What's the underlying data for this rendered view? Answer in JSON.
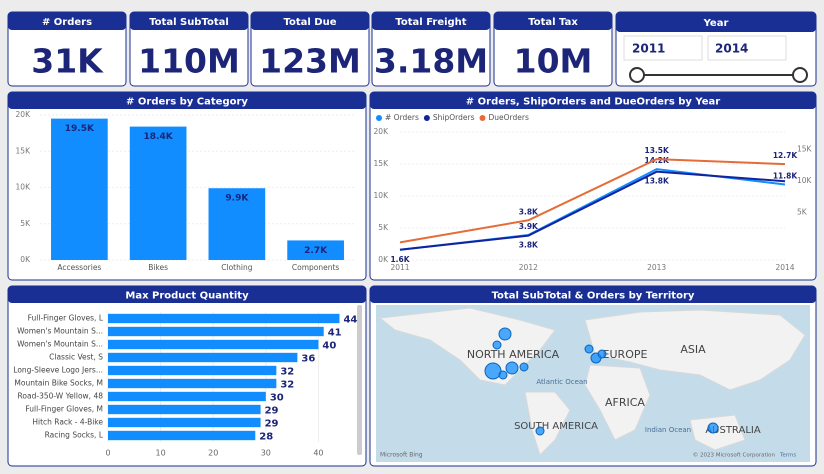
{
  "cards": [
    {
      "label": "# Orders",
      "value": "31K"
    },
    {
      "label": "Total SubTotal",
      "value": "110M"
    },
    {
      "label": "Total Due",
      "value": "123M"
    },
    {
      "label": "Total Freight",
      "value": "3.18M"
    },
    {
      "label": "Total Tax",
      "value": "10M"
    }
  ],
  "slicer": {
    "title": "Year",
    "from": "2011",
    "to": "2014"
  },
  "chart_data": [
    {
      "type": "bar",
      "title": "# Orders by Category",
      "color": "#118dff",
      "categories": [
        "Accessories",
        "Bikes",
        "Clothing",
        "Components"
      ],
      "values": [
        19500,
        18400,
        9900,
        2700
      ],
      "value_labels": [
        "19.5K",
        "18.4K",
        "9.9K",
        "2.7K"
      ],
      "ylim": [
        0,
        20000
      ],
      "yticks": [
        {
          "value": 0,
          "label": "0K"
        },
        {
          "value": 5000,
          "label": "5K"
        },
        {
          "value": 10000,
          "label": "10K"
        },
        {
          "value": 15000,
          "label": "15K"
        },
        {
          "value": 20000,
          "label": "20K"
        }
      ],
      "grid": true
    },
    {
      "type": "line",
      "title": "# Orders, ShipOrders and DueOrders by Year",
      "x": [
        2011,
        2012,
        2013,
        2014
      ],
      "xlim": [
        2011,
        2014
      ],
      "xticks": [
        2011,
        2012,
        2013,
        2014
      ],
      "ylim": [
        0,
        20000
      ],
      "yticks": [
        {
          "value": 0,
          "label": "0K"
        },
        {
          "value": 5000,
          "label": "5K"
        },
        {
          "value": 10000,
          "label": "10K"
        },
        {
          "value": 15000,
          "label": "15K"
        },
        {
          "value": 20000,
          "label": "20K"
        }
      ],
      "y2lim": [
        -2500,
        17800
      ],
      "y2ticks": [
        {
          "value": 5000,
          "label": "5K"
        },
        {
          "value": 10000,
          "label": "10K"
        },
        {
          "value": 15000,
          "label": "15K"
        }
      ],
      "grid": true,
      "legend": "top-left",
      "series": [
        {
          "name": "# Orders",
          "color": "#118dff",
          "values": [
            1600,
            3900,
            14200,
            11800
          ],
          "value_labels": [
            null,
            "3.9K",
            "14.2K",
            "11.8K"
          ]
        },
        {
          "name": "ShipOrders",
          "color": "#12239e",
          "values": [
            1600,
            3800,
            13800,
            12300
          ],
          "value_labels": [
            "1.6K",
            "3.8K",
            "13.8K",
            null
          ]
        },
        {
          "name": "DueOrders",
          "color": "#e66c37",
          "axis": "y2",
          "values": [
            300,
            3800,
            13500,
            12700
          ],
          "value_labels": [
            null,
            "3.8K",
            "13.5K",
            "12.7K"
          ]
        }
      ]
    },
    {
      "type": "bar",
      "horizontal": true,
      "title": "Max Product Quantity",
      "color": "#118dff",
      "categories": [
        "Full-Finger Gloves, L",
        "Women's Mountain S...",
        "Women's Mountain S...",
        "Classic Vest, S",
        "Long-Sleeve Logo Jers...",
        "Mountain Bike Socks, M",
        "Road-350-W Yellow, 48",
        "Full-Finger Gloves, M",
        "Hitch Rack - 4-Bike",
        "Racing Socks, L"
      ],
      "values": [
        44,
        41,
        40,
        36,
        32,
        32,
        30,
        29,
        29,
        28
      ],
      "xlim": [
        0,
        46
      ],
      "xticks": [
        0,
        10,
        20,
        30,
        40
      ],
      "grid": true
    }
  ],
  "map": {
    "title": "Total SubTotal & Orders by Territory",
    "labels": [
      "NORTH AMERICA",
      "EUROPE",
      "ASIA",
      "AFRICA",
      "SOUTH AMERICA",
      "AUSTRALIA",
      "Atlantic Ocean",
      "Indian Ocean"
    ],
    "credits": [
      "Microsoft Bing",
      "© 2023 Microsoft Corporation",
      "Terms"
    ]
  }
}
